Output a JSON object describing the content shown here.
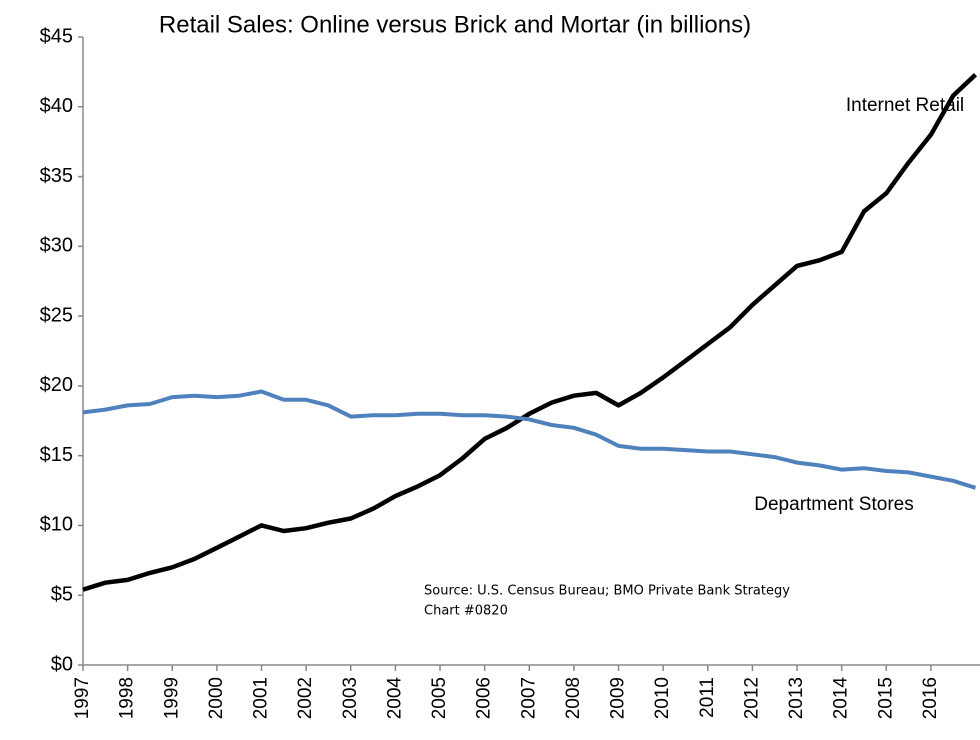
{
  "chart_data": {
    "type": "line",
    "title": "Retail Sales: Online versus Brick and Mortar (in billions)",
    "source": "Source: U.S. Census Bureau; BMO Private Bank Strategy",
    "chart_id": "Chart #0820",
    "x": [
      1997,
      1997.5,
      1998,
      1998.5,
      1999,
      1999.5,
      2000,
      2000.5,
      2001,
      2001.5,
      2002,
      2002.5,
      2003,
      2003.5,
      2004,
      2004.5,
      2005,
      2005.5,
      2006,
      2006.5,
      2007,
      2007.5,
      2008,
      2008.5,
      2009,
      2009.5,
      2010,
      2010.5,
      2011,
      2011.5,
      2012,
      2012.5,
      2013,
      2013.5,
      2014,
      2014.5,
      2015,
      2015.5,
      2016,
      2016.5,
      2017
    ],
    "series": [
      {
        "name": "Internet Retail",
        "color": "#000000",
        "values": [
          5.4,
          5.9,
          6.1,
          6.6,
          7.0,
          7.6,
          8.4,
          9.2,
          10.0,
          9.6,
          9.8,
          10.2,
          10.5,
          11.2,
          12.1,
          12.8,
          13.6,
          14.8,
          16.2,
          17.0,
          18.0,
          18.8,
          19.3,
          19.5,
          18.6,
          19.5,
          20.6,
          21.8,
          23.0,
          24.2,
          25.8,
          27.2,
          28.6,
          29.0,
          29.6,
          32.5,
          33.8,
          36.0,
          38.0,
          40.8,
          42.3
        ]
      },
      {
        "name": "Department Stores",
        "color": "#4f81bd",
        "values": [
          18.1,
          18.3,
          18.6,
          18.7,
          19.2,
          19.3,
          19.2,
          19.3,
          19.6,
          19.0,
          19.0,
          18.6,
          17.8,
          17.9,
          17.9,
          18.0,
          18.0,
          17.9,
          17.9,
          17.8,
          17.6,
          17.2,
          17.0,
          16.5,
          15.7,
          15.5,
          15.5,
          15.4,
          15.3,
          15.3,
          15.1,
          14.9,
          14.5,
          14.3,
          14.0,
          14.1,
          13.9,
          13.8,
          13.5,
          13.2,
          12.7
        ]
      }
    ],
    "xlim": [
      1997,
      2017.1
    ],
    "xticks": [
      1997,
      1998,
      1999,
      2000,
      2001,
      2002,
      2003,
      2004,
      2005,
      2006,
      2007,
      2008,
      2009,
      2010,
      2011,
      2012,
      2013,
      2014,
      2015,
      2016
    ],
    "ylim": [
      0,
      45
    ],
    "yticks": [
      {
        "value": 0,
        "label": "$0"
      },
      {
        "value": 5,
        "label": "$5"
      },
      {
        "value": 10,
        "label": "$10"
      },
      {
        "value": 15,
        "label": "$15"
      },
      {
        "value": 20,
        "label": "$20"
      },
      {
        "value": 25,
        "label": "$25"
      },
      {
        "value": 30,
        "label": "$30"
      },
      {
        "value": 35,
        "label": "$35"
      },
      {
        "value": 40,
        "label": "$40"
      },
      {
        "value": 45,
        "label": "$45"
      }
    ],
    "grid": false
  }
}
